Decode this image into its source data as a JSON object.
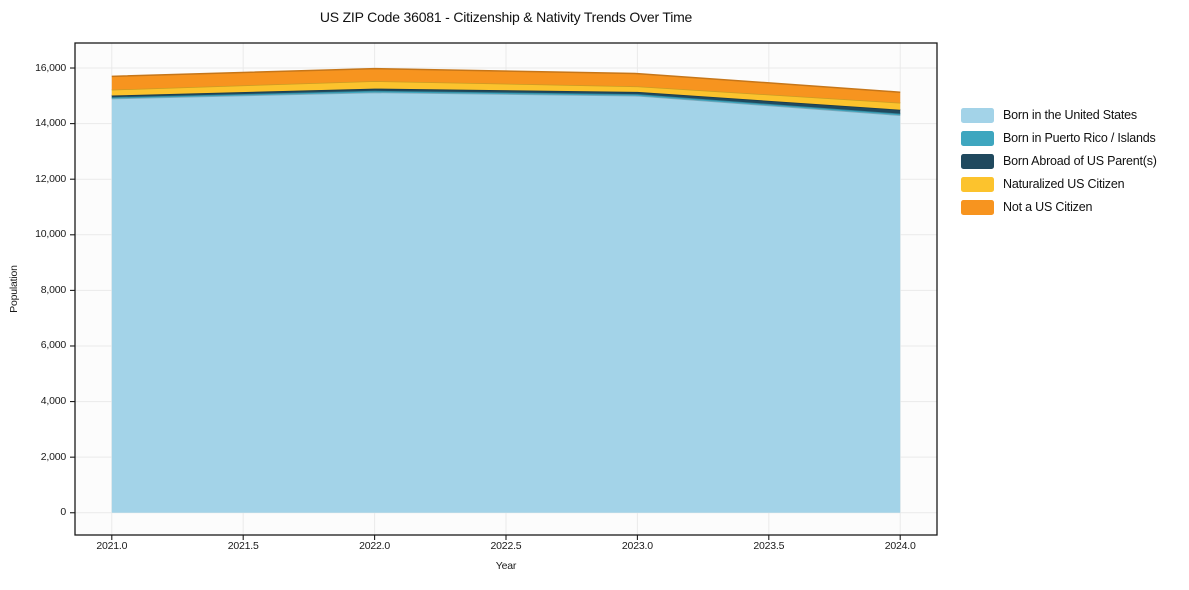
{
  "chart_data": {
    "type": "area",
    "stacked": true,
    "title": "US ZIP Code 36081 - Citizenship & Nativity Trends Over Time",
    "xlabel": "Year",
    "ylabel": "Population",
    "x": [
      2021,
      2022,
      2023,
      2024
    ],
    "series": [
      {
        "name": "Born in the United States",
        "color": "#a3d3e8",
        "values": [
          14900,
          15120,
          15000,
          14300
        ]
      },
      {
        "name": "Born in Puerto Rico / Islands",
        "color": "#3ea6bf",
        "values": [
          50,
          60,
          60,
          60
        ]
      },
      {
        "name": "Born Abroad of US Parent(s)",
        "color": "#20495e",
        "values": [
          60,
          80,
          80,
          140
        ]
      },
      {
        "name": "Naturalized US Citizen",
        "color": "#fcc32d",
        "values": [
          210,
          270,
          200,
          250
        ]
      },
      {
        "name": "Not a US Citizen",
        "color": "#f7941f",
        "values": [
          480,
          450,
          460,
          380
        ]
      }
    ],
    "x_ticks": [
      "2021.0",
      "2021.5",
      "2022.0",
      "2022.5",
      "2023.0",
      "2023.5",
      "2024.0"
    ],
    "x_tick_values": [
      2021,
      2021.5,
      2022,
      2022.5,
      2023,
      2023.5,
      2024
    ],
    "y_ticks": [
      "0",
      "2,000",
      "4,000",
      "6,000",
      "8,000",
      "10,000",
      "12,000",
      "14,000",
      "16,000"
    ],
    "y_tick_values": [
      0,
      2000,
      4000,
      6000,
      8000,
      10000,
      12000,
      14000,
      16000
    ],
    "xlim": [
      2020.86,
      2024.14
    ],
    "ylim": [
      -800,
      16900
    ],
    "grid": true,
    "legend_position": "right",
    "colors": {
      "frame": "#1a1a1a",
      "grid": "#eaeaea",
      "plot_background": "#fcfcfc",
      "page_background": "#ffffff",
      "text": "#1a1a1a"
    }
  }
}
